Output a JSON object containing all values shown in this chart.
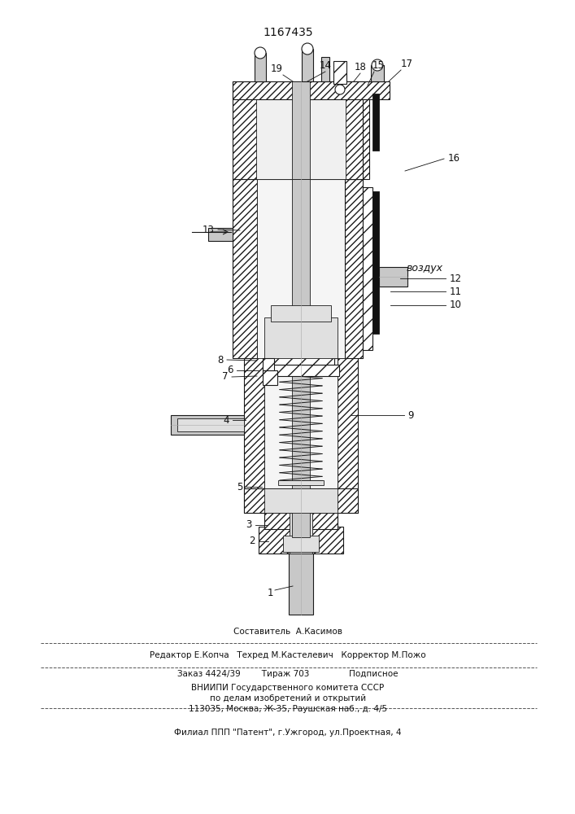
{
  "title": "1167435",
  "bg_color": "#ffffff",
  "line_color": "#1a1a1a",
  "label_color": "#111111",
  "vozdukh_label": "воздух",
  "footer_lines": [
    "Составитель  А.Касимов",
    "Редактор Е.Копча   Техред М.Кастелевич   Корректор М.Пожо",
    "Заказ 4424/39        Тираж 703               Подписное",
    "ВНИИПИ Государственного комитета СССР",
    "по делам изобретений и открытий",
    "113035, Москва, Ж-35, Раушская наб., д. 4/5",
    "Филиал ППП \"Патент\", г.Ужгород, ул.Проектная, 4"
  ]
}
